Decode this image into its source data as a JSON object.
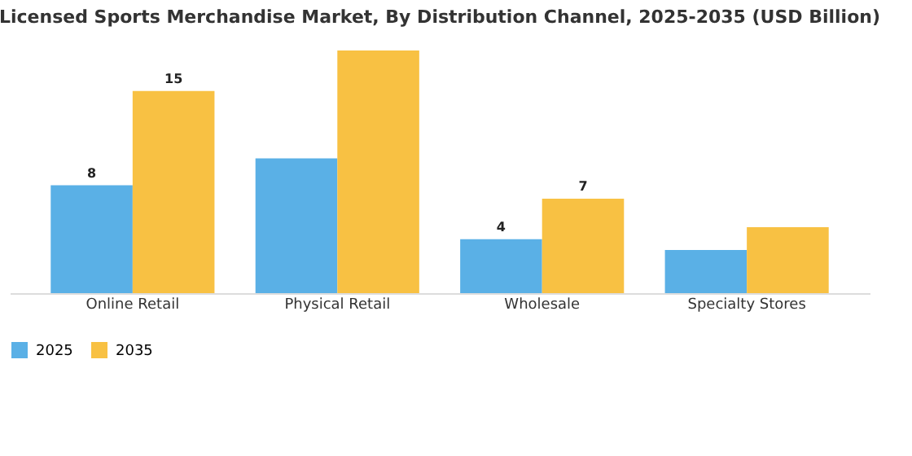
{
  "chart_data": {
    "type": "bar",
    "title": "Licensed Sports Merchandise Market, By Distribution Channel, 2025-2035 (USD Billion)",
    "categories": [
      "Online Retail",
      "Physical Retail",
      "Wholesale",
      "Specialty Stores"
    ],
    "series": [
      {
        "name": "2025",
        "color": "#5ab0e6",
        "values": [
          8,
          10.0,
          4,
          3.2
        ],
        "value_labels": [
          "8",
          null,
          "4",
          null
        ]
      },
      {
        "name": "2035",
        "color": "#f8c143",
        "values": [
          15,
          18.0,
          7,
          4.9
        ],
        "value_labels": [
          "15",
          null,
          "7",
          null
        ]
      }
    ],
    "legend": "bottom",
    "grid": false
  }
}
